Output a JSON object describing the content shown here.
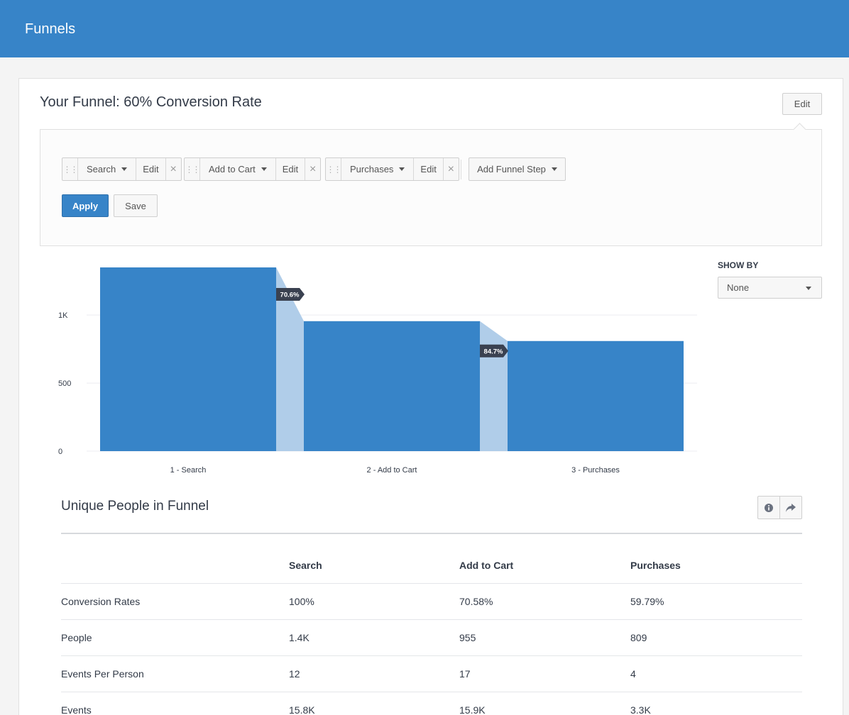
{
  "header": {
    "title": "Funnels"
  },
  "funnel": {
    "title": "Your Funnel: 60% Conversion Rate",
    "edit_label": "Edit",
    "steps": [
      {
        "label": "Search",
        "edit_label": "Edit"
      },
      {
        "label": "Add to Cart",
        "edit_label": "Edit"
      },
      {
        "label": "Purchases",
        "edit_label": "Edit"
      }
    ],
    "add_step_label": "Add Funnel Step",
    "apply_label": "Apply",
    "save_label": "Save"
  },
  "show_by": {
    "label": "SHOW BY",
    "value": "None"
  },
  "chart_data": {
    "type": "bar",
    "categories": [
      "1 - Search",
      "2 - Add to Cart",
      "3 - Purchases"
    ],
    "values": [
      1350,
      955,
      809
    ],
    "conversion_labels": [
      "70.6%",
      "84.7%"
    ],
    "ylim": [
      0,
      1350
    ],
    "yticks": [
      0,
      500,
      1000
    ],
    "ytick_labels": [
      "0",
      "500",
      "1K"
    ],
    "colors": {
      "bar": "#3784c8",
      "dropoff": "#b0cde9",
      "tag": "#3a4150"
    }
  },
  "table": {
    "title": "Unique People in Funnel",
    "headers": [
      "",
      "Search",
      "Add to Cart",
      "Purchases"
    ],
    "rows": [
      [
        "Conversion Rates",
        "100%",
        "70.58%",
        "59.79%"
      ],
      [
        "People",
        "1.4K",
        "955",
        "809"
      ],
      [
        "Events Per Person",
        "12",
        "17",
        "4"
      ],
      [
        "Events",
        "15.8K",
        "15.9K",
        "3.3K"
      ]
    ]
  },
  "icons": {
    "info": "info-icon",
    "share": "share-icon"
  }
}
